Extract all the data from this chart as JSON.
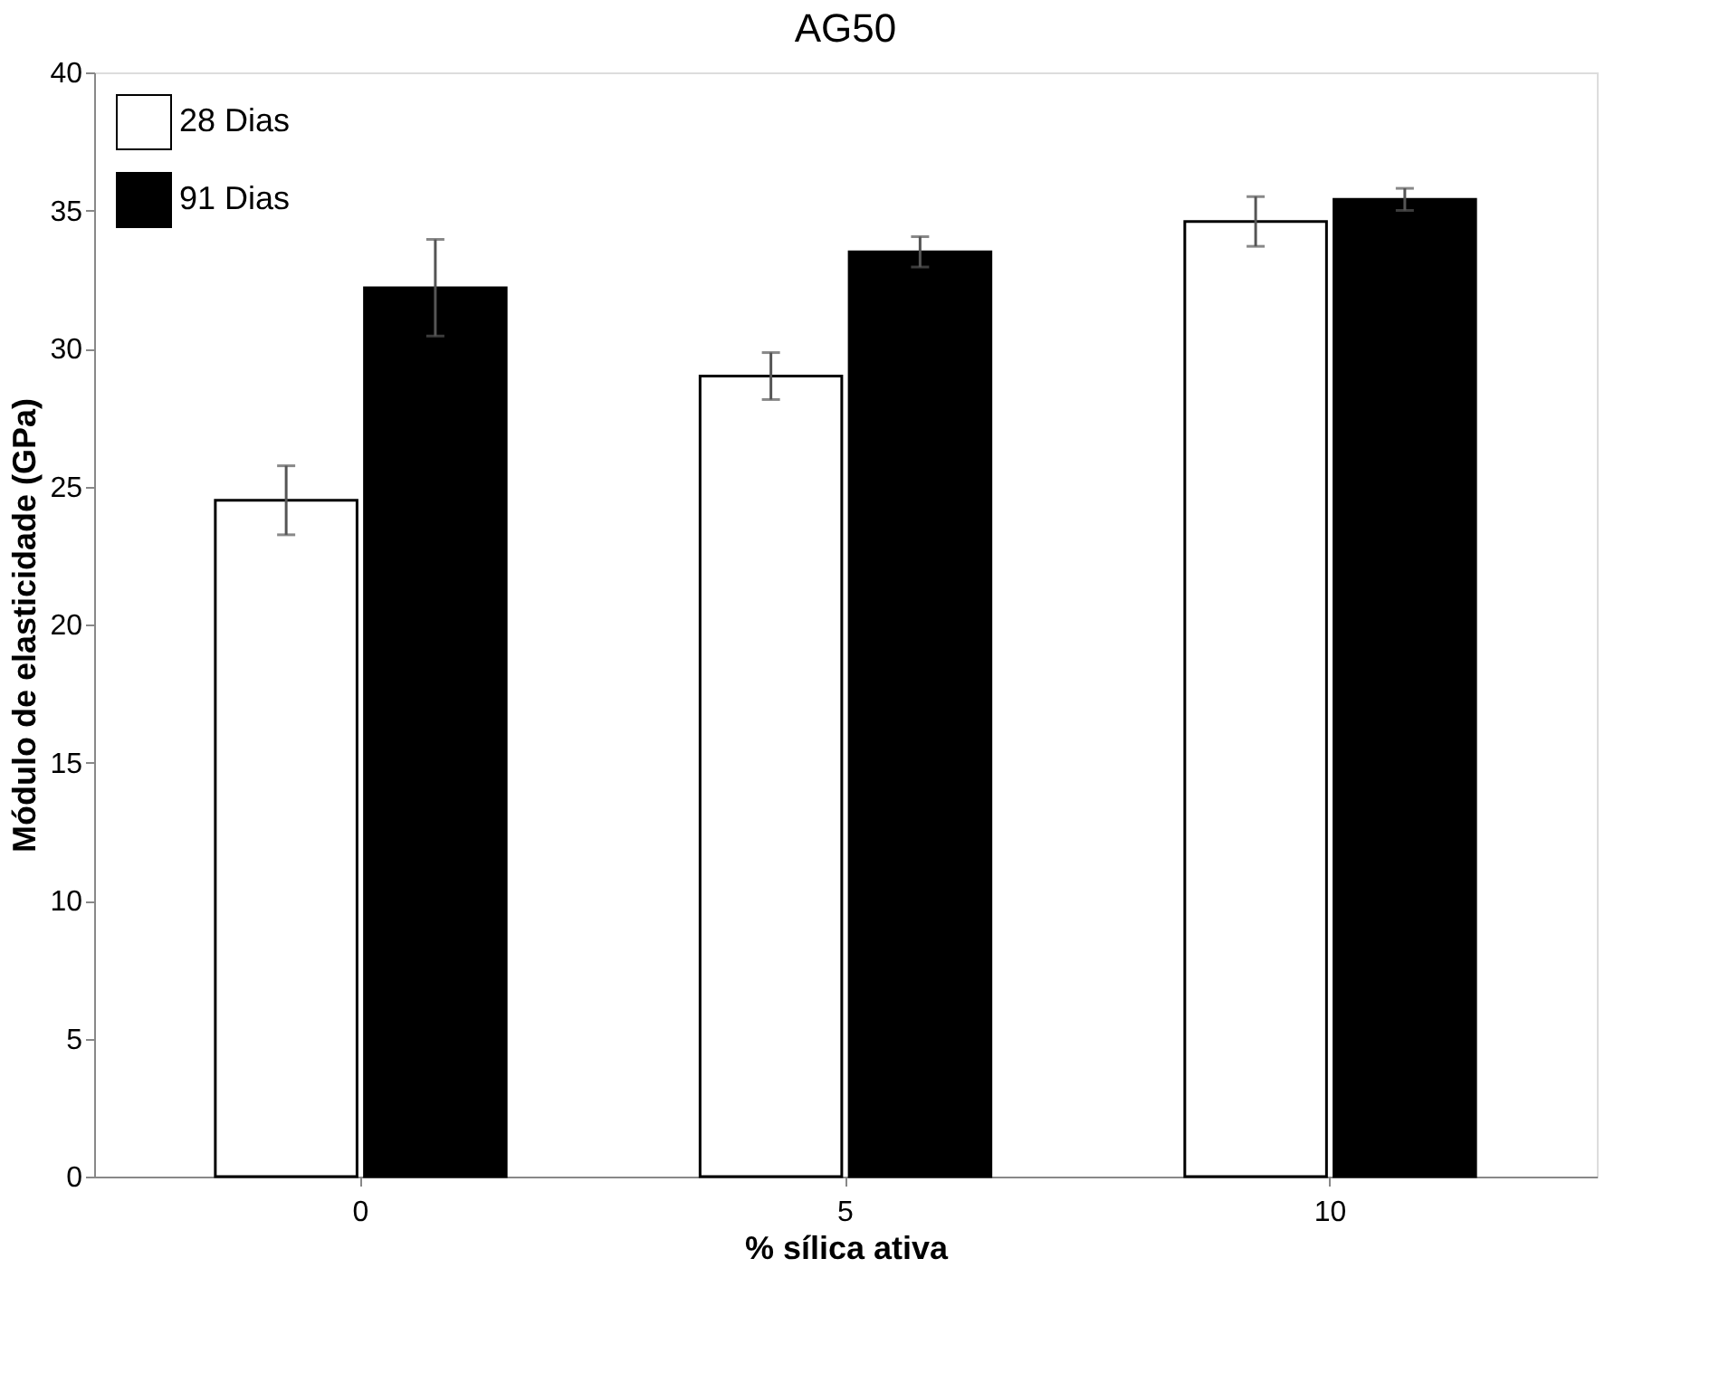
{
  "chart_data": {
    "type": "bar",
    "title": "AG50",
    "xlabel": "% sílica ativa",
    "ylabel": "Módulo de elasticidade (GPa)",
    "categories": [
      "0",
      "5",
      "10"
    ],
    "series": [
      {
        "name": "28 Dias",
        "color": "#ffffff",
        "values": [
          24.5,
          29.0,
          34.6
        ],
        "errors": [
          1.25,
          0.85,
          0.9
        ]
      },
      {
        "name": "91 Dias",
        "color": "#000000",
        "values": [
          32.2,
          33.5,
          35.4
        ],
        "errors": [
          1.75,
          0.55,
          0.4
        ]
      }
    ],
    "ylim": [
      0,
      40
    ],
    "yticks": [
      0,
      5,
      10,
      15,
      20,
      25,
      30,
      35,
      40
    ],
    "grid": false,
    "legend": "top left"
  }
}
